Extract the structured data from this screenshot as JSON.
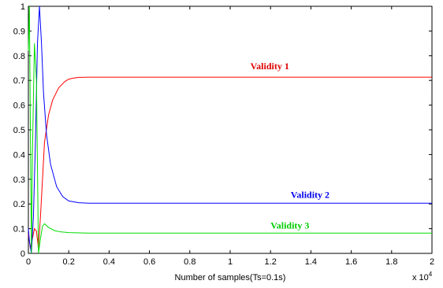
{
  "chart_data": {
    "type": "line",
    "title": "",
    "xlabel": "Number of samples(Ts=0.1s)",
    "ylabel": "",
    "x_multiplier": "x 10",
    "x_multiplier_exp": "4",
    "xlim": [
      0,
      2
    ],
    "ylim": [
      0,
      1
    ],
    "x_ticks": [
      "0",
      "0.2",
      "0.4",
      "0.6",
      "0.8",
      "1",
      "1.2",
      "1.4",
      "1.6",
      "1.8",
      "2"
    ],
    "y_ticks": [
      "0",
      "0.1",
      "0.2",
      "0.3",
      "0.4",
      "0.5",
      "0.6",
      "0.7",
      "0.8",
      "0.9",
      "1"
    ],
    "grid": false,
    "series": [
      {
        "name": "Validity 1",
        "color": "#ff0000",
        "x": [
          0,
          0.01,
          0.02,
          0.03,
          0.04,
          0.05,
          0.06,
          0.07,
          0.08,
          0.1,
          0.12,
          0.15,
          0.18,
          0.2,
          0.22,
          0.25,
          0.3,
          0.5,
          1.0,
          1.5,
          2.0
        ],
        "y": [
          0.08,
          0.02,
          0.06,
          0.1,
          0.09,
          0.02,
          0.15,
          0.3,
          0.45,
          0.56,
          0.62,
          0.67,
          0.695,
          0.705,
          0.709,
          0.712,
          0.713,
          0.713,
          0.713,
          0.713,
          0.713
        ]
      },
      {
        "name": "Validity 2",
        "color": "#0000ff",
        "x": [
          0,
          0.005,
          0.015,
          0.025,
          0.035,
          0.045,
          0.055,
          0.065,
          0.075,
          0.09,
          0.11,
          0.14,
          0.17,
          0.2,
          0.25,
          0.3,
          0.5,
          1.0,
          1.5,
          2.0
        ],
        "y": [
          0.1,
          0.05,
          0.0,
          0.15,
          0.45,
          0.85,
          1.0,
          0.85,
          0.65,
          0.48,
          0.36,
          0.27,
          0.23,
          0.212,
          0.205,
          0.203,
          0.203,
          0.203,
          0.203,
          0.203
        ]
      },
      {
        "name": "Validity 3",
        "color": "#00dd00",
        "x": [
          0,
          0.005,
          0.01,
          0.015,
          0.02,
          0.03,
          0.04,
          0.05,
          0.06,
          0.07,
          0.08,
          0.1,
          0.13,
          0.16,
          0.2,
          0.3,
          0.5,
          1.0,
          1.5,
          2.0
        ],
        "y": [
          0.82,
          1.0,
          0.5,
          0.0,
          0.4,
          0.85,
          0.7,
          0.0,
          0.06,
          0.11,
          0.12,
          0.105,
          0.092,
          0.087,
          0.084,
          0.082,
          0.082,
          0.082,
          0.082,
          0.082
        ]
      }
    ],
    "annotations": [
      {
        "text": "Validity 1",
        "color": "#dd0000",
        "x": 1.1,
        "y": 0.745
      },
      {
        "text": "Validity 2",
        "color": "#0000ee",
        "x": 1.3,
        "y": 0.225
      },
      {
        "text": "Validity 3",
        "color": "#00cc00",
        "x": 1.2,
        "y": 0.1
      }
    ]
  }
}
